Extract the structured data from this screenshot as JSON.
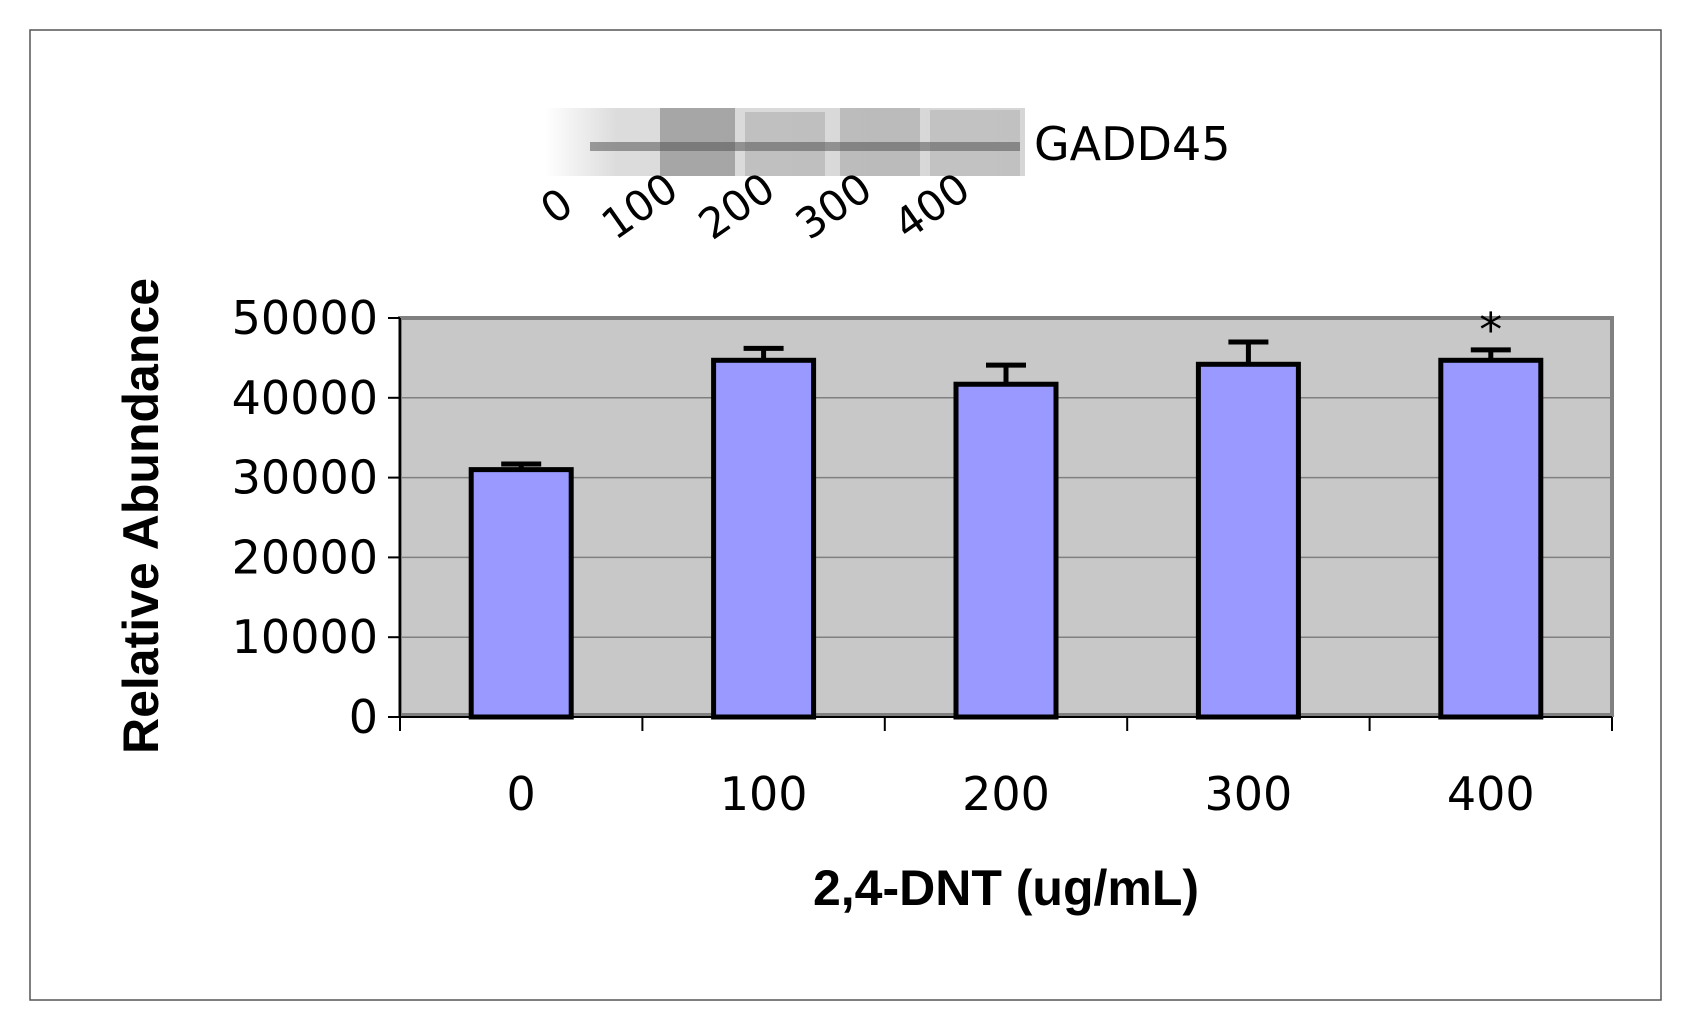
{
  "chart_data": {
    "type": "bar",
    "title": "",
    "xlabel": "2,4-DNT (ug/mL)",
    "ylabel": "Relative Abundance",
    "categories": [
      "0",
      "100",
      "200",
      "300",
      "400"
    ],
    "values": [
      31000,
      44700,
      41700,
      44200,
      44700
    ],
    "error": [
      700,
      1500,
      2400,
      2800,
      1300
    ],
    "annotations": [
      "",
      "",
      "",
      "",
      "*"
    ],
    "ylim": [
      0,
      50000
    ],
    "yticks": [
      "0",
      "10000",
      "20000",
      "30000",
      "40000",
      "50000"
    ],
    "grid": true,
    "legend": "none",
    "colors": {
      "bar": "#9999ff",
      "bar_edge": "#000000",
      "plot_bg": "#c8c8c8",
      "gridline": "#808080"
    }
  },
  "blot": {
    "protein_label": "GADD45",
    "lane_labels": [
      "0",
      "100",
      "200",
      "300",
      "400"
    ]
  }
}
